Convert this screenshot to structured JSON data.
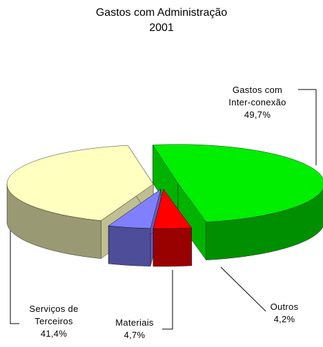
{
  "chart_data": {
    "type": "pie",
    "title": "Gastos com Administração",
    "subtitle": "2001",
    "categories": [
      "Gastos com Inter-conexão",
      "Outros",
      "Materiais",
      "Serviços de Terceiros"
    ],
    "values": [
      49.7,
      4.2,
      4.7,
      41.4
    ],
    "value_labels": [
      "49,7%",
      "4,2%",
      "4,7%",
      "41,4%"
    ],
    "colors": [
      "#00ee00",
      "#ff0000",
      "#8080ff",
      "#ffffc0"
    ]
  }
}
